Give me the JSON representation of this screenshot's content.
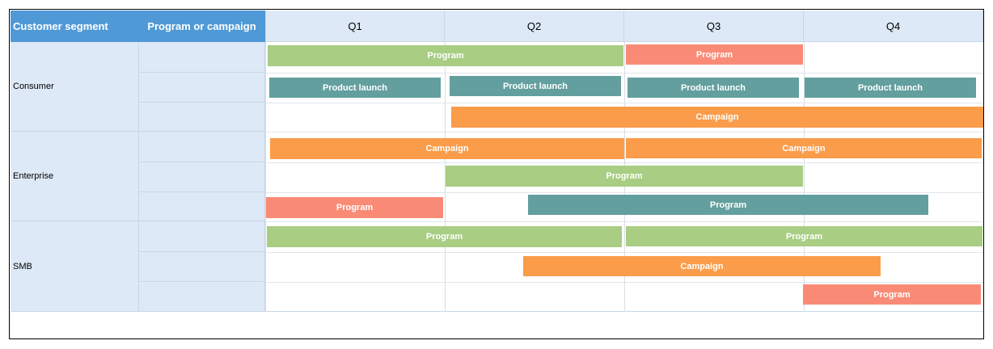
{
  "header": {
    "segment_label": "Customer segment",
    "program_label": "Program or campaign",
    "quarters": [
      "Q1",
      "Q2",
      "Q3",
      "Q4"
    ]
  },
  "segments": [
    {
      "label": "Consumer"
    },
    {
      "label": "Enterprise"
    },
    {
      "label": "SMB"
    }
  ],
  "colors": {
    "header_blue": "#4f99d6",
    "header_light": "#dde9f7",
    "green": "#a8cd83",
    "salmon": "#f98b76",
    "teal": "#639f9e",
    "orange": "#fa9c4a"
  },
  "bars": [
    {
      "label": "Program",
      "color": "green"
    },
    {
      "label": "Program",
      "color": "salmon"
    },
    {
      "label": "Product launch",
      "color": "teal"
    },
    {
      "label": "Product launch",
      "color": "teal"
    },
    {
      "label": "Product launch",
      "color": "teal"
    },
    {
      "label": "Product launch",
      "color": "teal"
    },
    {
      "label": "Campaign",
      "color": "orange"
    },
    {
      "label": "Campaign",
      "color": "orange"
    },
    {
      "label": "Campaign",
      "color": "orange"
    },
    {
      "label": "Program",
      "color": "green"
    },
    {
      "label": "Program",
      "color": "salmon"
    },
    {
      "label": "Program",
      "color": "teal"
    },
    {
      "label": "Program",
      "color": "green"
    },
    {
      "label": "Program",
      "color": "green"
    },
    {
      "label": "Campaign",
      "color": "orange"
    },
    {
      "label": "Program",
      "color": "salmon"
    }
  ]
}
